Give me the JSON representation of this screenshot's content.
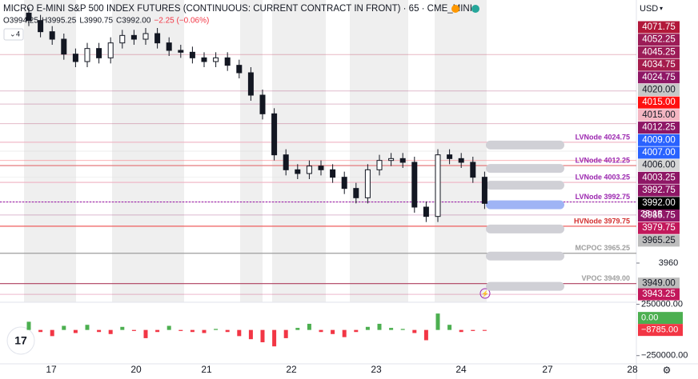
{
  "chart_data": {
    "type": "candlestick",
    "title": "MICRO E-MINI S&P 500 INDEX FUTURES (CONTINUOUS: CURRENT CONTRACT IN FRONT) · 65 · CME_MINI",
    "ohlc_text": [
      "O3994.25",
      "H3995.25",
      "L3990.75",
      "C3992.00",
      "−2.25 (−0.06%)"
    ],
    "indicator_count": "4",
    "currency": "USD",
    "countdown": "28:18",
    "x_labels": [
      "17",
      "20",
      "21",
      "22",
      "23",
      "24",
      "27",
      "28"
    ],
    "ylim": [
      3939,
      4101
    ],
    "yticks": [
      3960
    ],
    "open": [
      4094,
      4090,
      4084,
      4080,
      4072,
      4068,
      4075,
      4070,
      4078,
      4082,
      4080,
      4083,
      4078,
      4074,
      4073,
      4070,
      4068,
      4070,
      4066,
      4062,
      4050,
      4040,
      4018,
      4010,
      4008,
      4012,
      4010,
      4006,
      4000,
      3995,
      4010,
      4015,
      4016,
      4014,
      3990,
      3985,
      4018,
      4016,
      4014,
      4006
    ],
    "high": [
      4097,
      4093,
      4087,
      4083,
      4075,
      4078,
      4078,
      4081,
      4085,
      4085,
      4086,
      4086,
      4081,
      4077,
      4076,
      4073,
      4073,
      4073,
      4069,
      4065,
      4053,
      4043,
      4021,
      4013,
      4015,
      4015,
      4013,
      4009,
      4003,
      4013,
      4018,
      4019,
      4019,
      4017,
      3993,
      4021,
      4021,
      4019,
      4017,
      4009
    ],
    "low": [
      4087,
      4081,
      4077,
      4069,
      4065,
      4065,
      4067,
      4067,
      4075,
      4077,
      4077,
      4075,
      4071,
      4070,
      4067,
      4065,
      4065,
      4063,
      4059,
      4047,
      4037,
      4015,
      4007,
      4005,
      4005,
      4007,
      4003,
      3997,
      3992,
      3992,
      4007,
      4012,
      4011,
      3987,
      3982,
      3982,
      4013,
      4011,
      4003,
      3989
    ],
    "close": [
      4090,
      4084,
      4080,
      4072,
      4068,
      4075,
      4070,
      4078,
      4082,
      4080,
      4083,
      4078,
      4074,
      4073,
      4070,
      4068,
      4070,
      4066,
      4062,
      4050,
      4040,
      4018,
      4010,
      4008,
      4012,
      4010,
      4006,
      4000,
      3995,
      4010,
      4015,
      4016,
      4014,
      3990,
      3985,
      4018,
      4016,
      4014,
      4006,
      3992
    ],
    "price_labels": [
      {
        "value": 4071.75,
        "label": "4071.75",
        "color": "#b2183a"
      },
      {
        "value": 4052.25,
        "label": "4052.25",
        "color": "#9c1c57"
      },
      {
        "value": 4045.25,
        "label": "4045.25",
        "color": "#9c1c57"
      },
      {
        "value": 4034.75,
        "label": "4034.75",
        "color": "#a51c4c"
      },
      {
        "value": 4024.75,
        "label": "4024.75",
        "color": "#8e1665"
      },
      {
        "value": 4020,
        "label": "4020.00",
        "color": "#c8c8c8"
      },
      {
        "value": 4015,
        "label": "4015.00",
        "color": "#ff1010"
      },
      {
        "value": 4015,
        "label": "4015.00",
        "color": "#f4b6c2"
      },
      {
        "value": 4012.25,
        "label": "4012.25",
        "color": "#8e1665"
      },
      {
        "value": 4009,
        "label": "4009.00",
        "color": "#2962ff"
      },
      {
        "value": 4007,
        "label": "4007.00",
        "color": "#2962ff"
      },
      {
        "value": 4006,
        "label": "4006.00",
        "color": "#d6d6d6"
      },
      {
        "value": 4003.25,
        "label": "4003.25",
        "color": "#8e1665"
      },
      {
        "value": 3992.75,
        "label": "3992.75",
        "color": "#8e1665"
      },
      {
        "value": 3992,
        "label": "3992.00",
        "color": "#000000"
      },
      {
        "value": 3985.75,
        "label": "3985.75",
        "color": "#8e1665"
      },
      {
        "value": 3979.75,
        "label": "3979.75",
        "color": "#c2185b"
      },
      {
        "value": 3965.25,
        "label": "3965.25",
        "color": "#bdbdbd"
      },
      {
        "value": 3949,
        "label": "3949.00",
        "color": "#bdbdbd"
      },
      {
        "value": 3943.25,
        "label": "3943.25",
        "color": "#c2185b"
      }
    ],
    "levels": [
      {
        "value": 4024.75,
        "label": "LVNode 4024.75",
        "color": "#9c27b0",
        "line_color": "#f2b8c6",
        "pill": "#d0d0d6"
      },
      {
        "value": 4012.25,
        "label": "LVNode 4012.25",
        "color": "#9c27b0",
        "line_color": "#e57373",
        "pill": "#d0d0d6"
      },
      {
        "value": 4003.25,
        "label": "LVNode 4003.25",
        "color": "#9c27b0",
        "line_color": "#f2b8c6",
        "pill": "#d0d0d6"
      },
      {
        "value": 3992.75,
        "label": "LVNode 3992.75",
        "color": "#9c27b0",
        "line_color": "#9c27b0",
        "pill": "#9fb4f5"
      },
      {
        "value": 3979.75,
        "label": "HVNode 3979.75",
        "color": "#d32f2f",
        "line_color": "#ef5350",
        "pill": "#d0d0d6"
      },
      {
        "value": 3965.25,
        "label": "MCPOC 3965.25",
        "color": "#9e9e9e",
        "line_color": "#9e9e9e",
        "pill": "#d0d0d6"
      },
      {
        "value": 3949,
        "label": "VPOC 3949.00",
        "color": "#9e9e9e",
        "line_color": "#b04060",
        "pill": "#d0d0d6"
      }
    ],
    "oscillator": {
      "values": [
        80000,
        -20000,
        -60000,
        40000,
        -30000,
        50000,
        -20000,
        -40000,
        30000,
        -10000,
        -80000,
        -20000,
        40000,
        -10000,
        -20000,
        -30000,
        10000,
        -20000,
        -60000,
        -90000,
        -120000,
        -160000,
        -80000,
        20000,
        60000,
        -20000,
        -40000,
        -70000,
        -20000,
        30000,
        60000,
        20000,
        10000,
        -30000,
        -100000,
        160000,
        50000,
        -20000,
        -10000,
        -8785
      ],
      "ylim": [
        -330000,
        270000
      ],
      "yticks": [
        {
          "value": 250000,
          "label": "250000.00"
        },
        {
          "value": -250000,
          "label": "−250000.00"
        }
      ],
      "last_labels": [
        {
          "value": 0,
          "label": "0.00",
          "color": "#4caf50"
        },
        {
          "value": -8785,
          "label": "−8785.00",
          "color": "#f23645"
        }
      ],
      "up_color": "#4caf50",
      "down_color": "#f23645"
    }
  }
}
